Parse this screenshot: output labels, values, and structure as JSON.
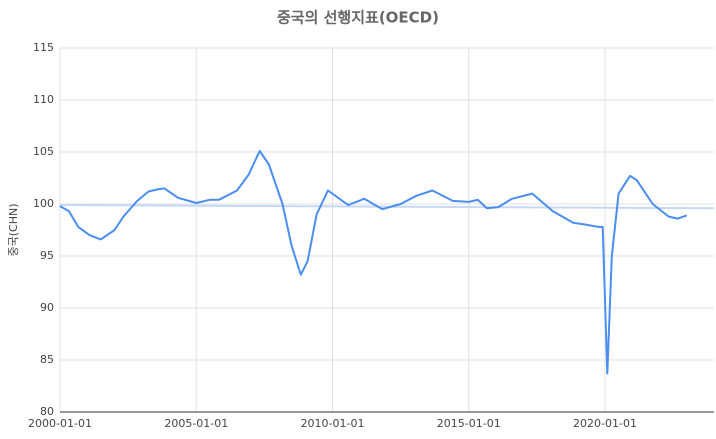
{
  "chart_data": {
    "type": "line",
    "title": "중국의 선행지표(OECD)",
    "y_label": "중국(CHN)",
    "xlim": [
      "2000-01-01",
      "2024-01-01"
    ],
    "xticks": [
      "2000-01-01",
      "2005-01-01",
      "2010-01-01",
      "2015-01-01",
      "2020-01-01"
    ],
    "ylim": [
      80,
      115
    ],
    "yticks": [
      80,
      85,
      90,
      95,
      100,
      105,
      110,
      115
    ],
    "grid": true,
    "series": [
      {
        "color": "#c6d8f5",
        "x": [
          "2000-01-01",
          "2024-01-01"
        ],
        "values": [
          99.9,
          99.6
        ]
      },
      {
        "color": "#4a8ef0",
        "x": [
          "2000-01-01",
          "2000-05-01",
          "2000-09-01",
          "2001-02-01",
          "2001-07-01",
          "2002-01-01",
          "2002-05-01",
          "2002-11-01",
          "2003-04-01",
          "2003-08-01",
          "2003-11-01",
          "2004-05-01",
          "2005-01-01",
          "2005-07-01",
          "2005-11-01",
          "2006-07-01",
          "2006-12-01",
          "2007-05-01",
          "2007-09-01",
          "2008-03-01",
          "2008-07-01",
          "2008-11-01",
          "2009-02-01",
          "2009-06-01",
          "2009-11-01",
          "2010-06-01",
          "2010-08-01",
          "2011-03-01",
          "2011-11-01",
          "2012-07-01",
          "2013-02-01",
          "2013-09-01",
          "2014-06-01",
          "2015-01-01",
          "2015-05-01",
          "2015-09-01",
          "2016-02-01",
          "2016-08-01",
          "2017-05-01",
          "2018-02-01",
          "2018-11-01",
          "2019-05-01",
          "2019-10-01",
          "2019-12-01",
          "2020-02-01",
          "2020-04-01",
          "2020-07-01",
          "2020-12-01",
          "2021-03-01",
          "2021-10-01",
          "2022-05-01",
          "2022-09-01",
          "2023-01-01"
        ],
        "values": [
          99.8,
          99.3,
          97.8,
          97.0,
          96.6,
          97.5,
          98.8,
          100.3,
          101.2,
          101.4,
          101.5,
          100.6,
          100.1,
          100.4,
          100.4,
          101.3,
          102.8,
          105.1,
          103.8,
          100.0,
          96.0,
          93.2,
          94.5,
          99.0,
          101.3,
          100.2,
          99.9,
          100.5,
          99.5,
          100.0,
          100.8,
          101.3,
          100.3,
          100.2,
          100.4,
          99.6,
          99.7,
          100.5,
          101.0,
          99.3,
          98.2,
          98.0,
          97.8,
          97.8,
          83.7,
          95.0,
          101.0,
          102.7,
          102.3,
          100.0,
          98.8,
          98.6,
          98.9
        ]
      }
    ]
  }
}
